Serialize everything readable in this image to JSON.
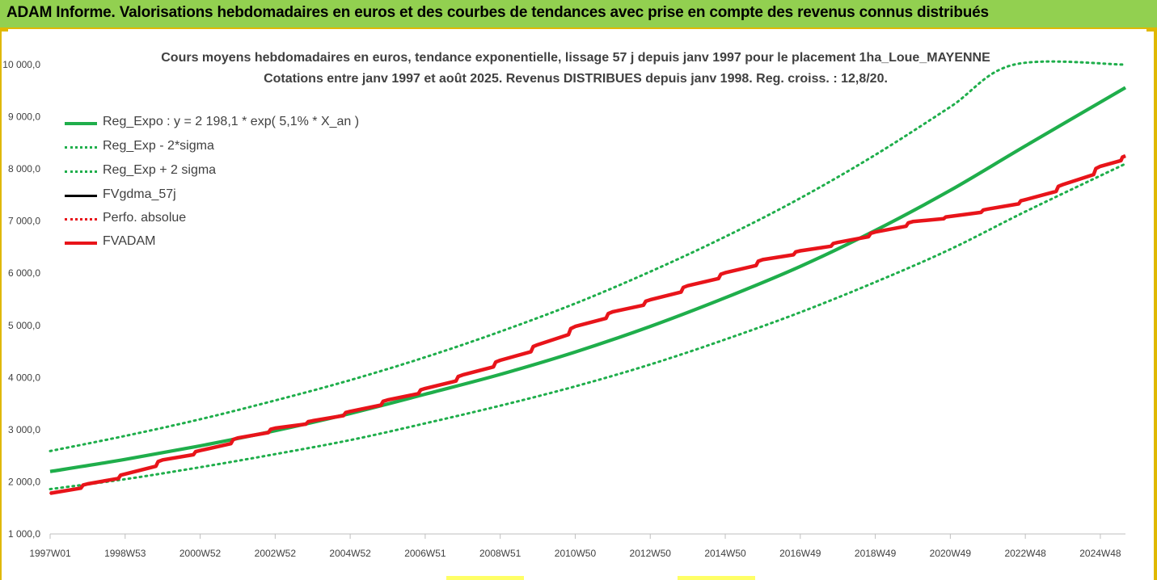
{
  "header": {
    "title": "ADAM Informe. Valorisations hebdomadaires en euros et des courbes de tendances avec prise en compte des revenus connus distribués"
  },
  "colors": {
    "header_bg": "#92d050",
    "frame": "#e0b800",
    "trend_green": "#1fae4b",
    "fvadam_red": "#e8141a",
    "fvgdma_black": "#000000",
    "perfo_red": "#e8141a"
  },
  "chart_data": {
    "type": "line",
    "title": "Cours moyens hebdomadaires en euros, tendance exponentielle, lissage 57 j depuis janv 1997 pour le placement 1ha_Loue_MAYENNE",
    "subtitle": "Cotations entre janv 1997 et août 2025. Revenus DISTRIBUES depuis janv 1998. Reg. croiss. : 12,8/20.",
    "xlabel": "",
    "ylabel": "",
    "ylim": [
      1000,
      10000
    ],
    "xlim": [
      1997.0,
      2025.67
    ],
    "grid": false,
    "legend_position": "top-left",
    "x_tick_labels": [
      "1997W01",
      "1998W53",
      "2000W52",
      "2002W52",
      "2004W52",
      "2006W51",
      "2008W51",
      "2010W50",
      "2012W50",
      "2014W50",
      "2016W49",
      "2018W49",
      "2020W49",
      "2022W48",
      "2024W48"
    ],
    "x_tick_positions": [
      1997.0,
      1999.0,
      2001.0,
      2003.0,
      2005.0,
      2007.0,
      2009.0,
      2011.0,
      2013.0,
      2015.0,
      2017.0,
      2019.0,
      2021.0,
      2023.0,
      2025.0
    ],
    "y_tick_labels": [
      "1 000,0",
      "2 000,0",
      "3 000,0",
      "4 000,0",
      "5 000,0",
      "6 000,0",
      "7 000,0",
      "8 000,0",
      "9 000,0",
      "10 000,0"
    ],
    "y_tick_values": [
      1000,
      2000,
      3000,
      4000,
      5000,
      6000,
      7000,
      8000,
      9000,
      10000
    ],
    "series": [
      {
        "name": "Reg_Expo : y = 2 198,1 * exp( 5,1% *  X_an )",
        "style": "solid",
        "color": "#1fae4b",
        "x": [
          1997.0,
          1999.0,
          2001.0,
          2003.0,
          2005.0,
          2007.0,
          2009.0,
          2011.0,
          2013.0,
          2015.0,
          2017.0,
          2019.0,
          2021.0,
          2023.0,
          2025.67
        ],
        "y": [
          2198,
          2430,
          2690,
          2980,
          3310,
          3680,
          4060,
          4490,
          4980,
          5530,
          6130,
          6820,
          7590,
          8440,
          9560
        ]
      },
      {
        "name": "Reg_Exp - 2*sigma",
        "style": "dotted",
        "color": "#1fae4b",
        "x": [
          1997.0,
          1999.0,
          2001.0,
          2003.0,
          2005.0,
          2007.0,
          2009.0,
          2011.0,
          2013.0,
          2015.0,
          2017.0,
          2019.0,
          2021.0,
          2023.0,
          2025.67
        ],
        "y": [
          1860,
          2050,
          2280,
          2530,
          2800,
          3120,
          3460,
          3830,
          4250,
          4730,
          5250,
          5830,
          6460,
          7180,
          8100
        ]
      },
      {
        "name": "Reg_Exp + 2 sigma",
        "style": "dotted",
        "color": "#1fae4b",
        "x": [
          1997.0,
          1999.0,
          2001.0,
          2003.0,
          2005.0,
          2007.0,
          2009.0,
          2011.0,
          2013.0,
          2015.0,
          2017.0,
          2019.0,
          2021.0,
          2022.7,
          2025.67
        ],
        "y": [
          2590,
          2880,
          3200,
          3560,
          3950,
          4390,
          4880,
          5420,
          6030,
          6700,
          7440,
          8270,
          9190,
          10000,
          10000
        ]
      },
      {
        "name": "FVgdma_57j",
        "style": "solid",
        "color": "#000000",
        "x": [
          1997.0,
          1998.0,
          1999.0,
          2000.0,
          2001.0,
          2002.0,
          2003.0,
          2004.0,
          2005.0,
          2006.0,
          2007.0,
          2008.0,
          2009.0,
          2010.0,
          2011.0,
          2012.0,
          2013.0,
          2014.0,
          2015.0,
          2016.0,
          2017.0,
          2018.0,
          2019.0,
          2020.0,
          2021.0,
          2022.0,
          2023.0,
          2024.0,
          2025.0,
          2025.67
        ],
        "y": [
          1780,
          1960,
          2150,
          2420,
          2600,
          2840,
          3030,
          3170,
          3350,
          3570,
          3790,
          4050,
          4330,
          4630,
          4980,
          5260,
          5490,
          5760,
          6010,
          6260,
          6430,
          6590,
          6790,
          6990,
          7090,
          7230,
          7410,
          7700,
          8050,
          8250
        ]
      },
      {
        "name": "Perfo. absolue",
        "style": "dotted",
        "color": "#e8141a",
        "x": [
          1997.0,
          1998.0,
          1999.0,
          2000.0,
          2001.0,
          2002.0,
          2003.0,
          2004.0,
          2005.0,
          2006.0,
          2007.0,
          2008.0,
          2009.0,
          2010.0,
          2011.0,
          2012.0,
          2013.0,
          2014.0,
          2015.0,
          2016.0,
          2017.0,
          2018.0,
          2019.0,
          2020.0,
          2021.0,
          2022.0,
          2023.0,
          2024.0,
          2025.0,
          2025.67
        ],
        "y": [
          1780,
          1960,
          2150,
          2420,
          2600,
          2840,
          3030,
          3170,
          3350,
          3570,
          3790,
          4050,
          4330,
          4630,
          4980,
          5260,
          5490,
          5760,
          6010,
          6260,
          6430,
          6590,
          6790,
          6990,
          7090,
          7230,
          7410,
          7700,
          8050,
          8250
        ]
      },
      {
        "name": "FVADAM",
        "style": "solid",
        "color": "#e8141a",
        "x": [
          1997.0,
          1998.0,
          1999.0,
          2000.0,
          2001.0,
          2002.0,
          2003.0,
          2004.0,
          2005.0,
          2006.0,
          2007.0,
          2008.0,
          2009.0,
          2010.0,
          2011.0,
          2012.0,
          2013.0,
          2014.0,
          2015.0,
          2016.0,
          2017.0,
          2018.0,
          2019.0,
          2020.0,
          2021.0,
          2022.0,
          2023.0,
          2024.0,
          2025.0,
          2025.67
        ],
        "y": [
          1780,
          1960,
          2150,
          2420,
          2600,
          2840,
          3030,
          3170,
          3350,
          3570,
          3790,
          4050,
          4330,
          4630,
          4980,
          5260,
          5490,
          5760,
          6010,
          6260,
          6430,
          6590,
          6790,
          6990,
          7090,
          7230,
          7410,
          7700,
          8050,
          8250
        ]
      }
    ]
  }
}
